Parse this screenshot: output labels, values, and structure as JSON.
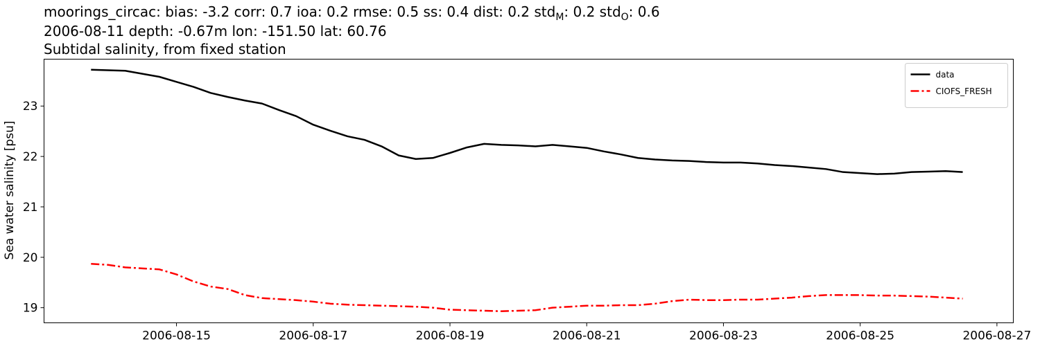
{
  "chart_data": {
    "type": "line",
    "title_parts": [
      "moorings_circac: bias: -3.2  corr: 0.7  ioa: 0.2  rmse: 0.5  ss: 0.4  dist: 0.2  std",
      "M",
      ": 0.2  std",
      "O",
      ": 0.6"
    ],
    "subtitle": "2006-08-11 depth: -0.67m lon: -151.50 lat: 60.76",
    "subtitle2": "Subtidal salinity, from fixed station",
    "ylabel": "Sea water salinity [psu]",
    "x": [
      "2006-08-13 18:00",
      "2006-08-14 00:00",
      "2006-08-14 06:00",
      "2006-08-14 12:00",
      "2006-08-14 18:00",
      "2006-08-15 00:00",
      "2006-08-15 06:00",
      "2006-08-15 12:00",
      "2006-08-15 18:00",
      "2006-08-16 00:00",
      "2006-08-16 06:00",
      "2006-08-16 12:00",
      "2006-08-16 18:00",
      "2006-08-17 00:00",
      "2006-08-17 06:00",
      "2006-08-17 12:00",
      "2006-08-17 18:00",
      "2006-08-18 00:00",
      "2006-08-18 06:00",
      "2006-08-18 12:00",
      "2006-08-18 18:00",
      "2006-08-19 00:00",
      "2006-08-19 06:00",
      "2006-08-19 12:00",
      "2006-08-19 18:00",
      "2006-08-20 00:00",
      "2006-08-20 06:00",
      "2006-08-20 12:00",
      "2006-08-20 18:00",
      "2006-08-21 00:00",
      "2006-08-21 06:00",
      "2006-08-21 12:00",
      "2006-08-21 18:00",
      "2006-08-22 00:00",
      "2006-08-22 06:00",
      "2006-08-22 12:00",
      "2006-08-22 18:00",
      "2006-08-23 00:00",
      "2006-08-23 06:00",
      "2006-08-23 12:00",
      "2006-08-23 18:00",
      "2006-08-24 00:00",
      "2006-08-24 06:00",
      "2006-08-24 12:00",
      "2006-08-24 18:00",
      "2006-08-25 00:00",
      "2006-08-25 06:00",
      "2006-08-25 12:00",
      "2006-08-25 18:00",
      "2006-08-26 00:00",
      "2006-08-26 06:00",
      "2006-08-26 12:00"
    ],
    "series": [
      {
        "name": "data",
        "color": "#000000",
        "dash": "solid",
        "values": [
          23.72,
          23.71,
          23.7,
          23.64,
          23.58,
          23.48,
          23.38,
          23.26,
          23.18,
          23.11,
          23.05,
          22.92,
          22.8,
          22.63,
          22.51,
          22.4,
          22.33,
          22.2,
          22.02,
          21.95,
          21.97,
          22.07,
          22.18,
          22.25,
          22.23,
          22.22,
          22.2,
          22.23,
          22.2,
          22.17,
          22.1,
          22.04,
          21.97,
          21.94,
          21.92,
          21.91,
          21.89,
          21.88,
          21.88,
          21.86,
          21.83,
          21.81,
          21.78,
          21.75,
          21.69,
          21.67,
          21.65,
          21.66,
          21.69,
          21.7,
          21.71,
          21.69
        ]
      },
      {
        "name": "CIOFS_FRESH",
        "color": "#ff0000",
        "dash": "dashdot",
        "values": [
          19.87,
          19.85,
          19.8,
          19.78,
          19.76,
          19.66,
          19.52,
          19.42,
          19.37,
          19.25,
          19.19,
          19.17,
          19.15,
          19.12,
          19.08,
          19.06,
          19.05,
          19.04,
          19.03,
          19.02,
          19.0,
          18.96,
          18.95,
          18.94,
          18.93,
          18.94,
          18.95,
          19.0,
          19.02,
          19.04,
          19.04,
          19.05,
          19.05,
          19.08,
          19.13,
          19.16,
          19.15,
          19.15,
          19.16,
          19.16,
          19.18,
          19.2,
          19.23,
          19.25,
          19.25,
          19.25,
          19.24,
          19.24,
          19.23,
          19.22,
          19.2,
          19.18
        ]
      }
    ],
    "xlim": [
      "2006-08-13 01:30",
      "2006-08-27 05:45"
    ],
    "xticks": [
      "2006-08-15",
      "2006-08-17",
      "2006-08-19",
      "2006-08-21",
      "2006-08-23",
      "2006-08-25",
      "2006-08-27"
    ],
    "ylim": [
      18.7,
      23.93
    ],
    "yticks": [
      19,
      20,
      21,
      22,
      23
    ],
    "grid": false,
    "legend": "upper right"
  }
}
